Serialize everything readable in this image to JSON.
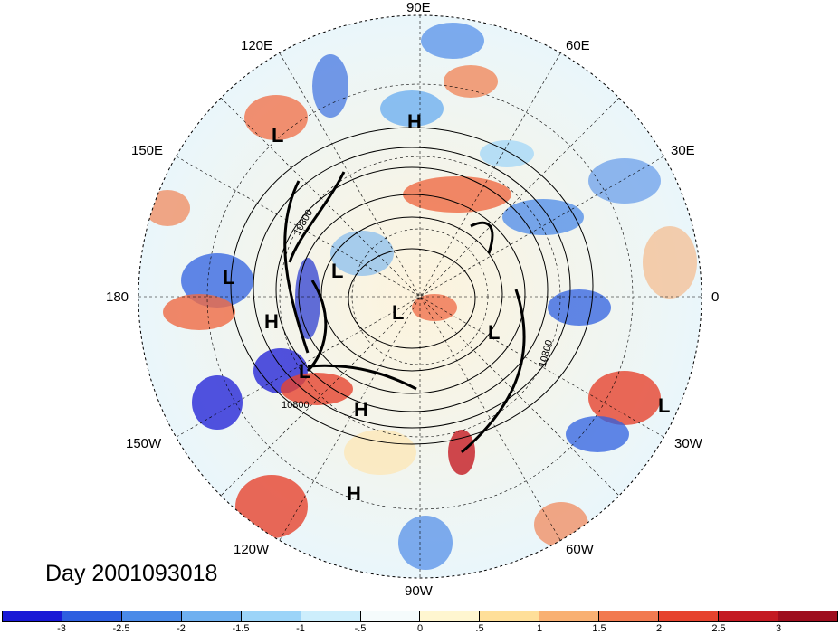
{
  "title": "Day 2001093018",
  "longitude_labels": {
    "top": "90E",
    "tl1": "120E",
    "tr1": "60E",
    "tl2": "150E",
    "tr2": "30E",
    "left": "180",
    "right": "0",
    "bl1": "150W",
    "br1": "30W",
    "bl2": "120W",
    "br2": "60W",
    "bottom": "90W"
  },
  "contour_labels": [
    "10800",
    "10800",
    "10800"
  ],
  "pressure_centers": [
    "L",
    "H",
    "L",
    "L",
    "L",
    "H",
    "L",
    "L",
    "H",
    "L",
    "H"
  ],
  "colorbar": {
    "ticks": [
      "-3",
      "-2.5",
      "-2",
      "-1.5",
      "-1",
      "-.5",
      "0",
      ".5",
      "1",
      "1.5",
      "2",
      "2.5",
      "3"
    ],
    "colors": [
      "#1a1ad6",
      "#2e5fe0",
      "#4a8ae8",
      "#6fb0f0",
      "#9cd4f8",
      "#cdeefc",
      "#f5fbfc",
      "#fff6d0",
      "#ffdf99",
      "#f9b072",
      "#f27a50",
      "#e6432e",
      "#c41a22",
      "#9e0e1e"
    ]
  }
}
